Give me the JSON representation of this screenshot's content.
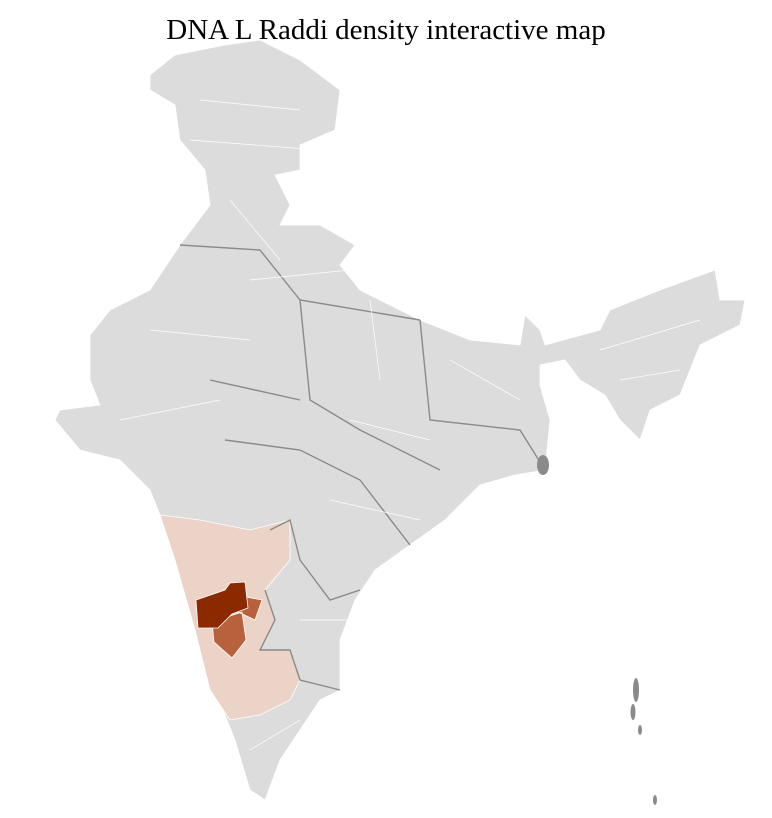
{
  "title": "DNA L Raddi density interactive map",
  "map": {
    "base_color": "#dcdcdc",
    "border_color": "#8a8a8a",
    "district_line_color": "#ffffff",
    "density_colors": {
      "low": "#ecd3c7",
      "medium": "#b8623d",
      "high": "#8b2a00"
    }
  }
}
